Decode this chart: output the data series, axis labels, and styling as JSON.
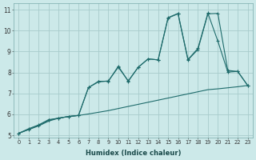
{
  "xlabel": "Humidex (Indice chaleur)",
  "xlim": [
    0,
    23
  ],
  "ylim": [
    5,
    11
  ],
  "xticks": [
    0,
    1,
    2,
    3,
    4,
    5,
    6,
    7,
    8,
    9,
    10,
    11,
    12,
    13,
    14,
    15,
    16,
    17,
    18,
    19,
    20,
    21,
    22,
    23
  ],
  "yticks": [
    5,
    6,
    7,
    8,
    9,
    10,
    11
  ],
  "bg_color": "#cce9e9",
  "grid_color": "#a8cccc",
  "line_color": "#1e6b6b",
  "line1_x": [
    0,
    1,
    2,
    3,
    4,
    5,
    6,
    7,
    8,
    9,
    10,
    11,
    12,
    13,
    14,
    15,
    16,
    17,
    18,
    19,
    20,
    21,
    22,
    23
  ],
  "line1_y": [
    5.1,
    5.28,
    5.45,
    5.68,
    5.82,
    5.9,
    5.95,
    6.02,
    6.1,
    6.18,
    6.28,
    6.38,
    6.48,
    6.58,
    6.68,
    6.78,
    6.88,
    6.98,
    7.08,
    7.18,
    7.22,
    7.27,
    7.32,
    7.38
  ],
  "line2_x": [
    0,
    1,
    2,
    3,
    4,
    5,
    6,
    7,
    8,
    9,
    10,
    11,
    12,
    13,
    14,
    15,
    16,
    17,
    18,
    19,
    20,
    21,
    22,
    23
  ],
  "line2_y": [
    5.1,
    5.28,
    5.48,
    5.72,
    5.82,
    5.9,
    5.95,
    7.28,
    7.55,
    7.6,
    8.25,
    7.6,
    8.25,
    8.65,
    8.6,
    10.6,
    10.8,
    8.6,
    9.1,
    10.8,
    10.82,
    8.1,
    8.05,
    7.38
  ],
  "line3_x": [
    0,
    1,
    2,
    3,
    4,
    5,
    6,
    7,
    8,
    9,
    10,
    11,
    12,
    13,
    14,
    15,
    16,
    17,
    18,
    19,
    20,
    21,
    22,
    23
  ],
  "line3_y": [
    5.1,
    5.32,
    5.5,
    5.75,
    5.82,
    5.9,
    5.95,
    7.28,
    7.58,
    7.58,
    8.3,
    7.58,
    8.25,
    8.65,
    8.6,
    10.62,
    10.82,
    8.62,
    9.15,
    10.83,
    9.5,
    8.02,
    8.05,
    7.38
  ]
}
